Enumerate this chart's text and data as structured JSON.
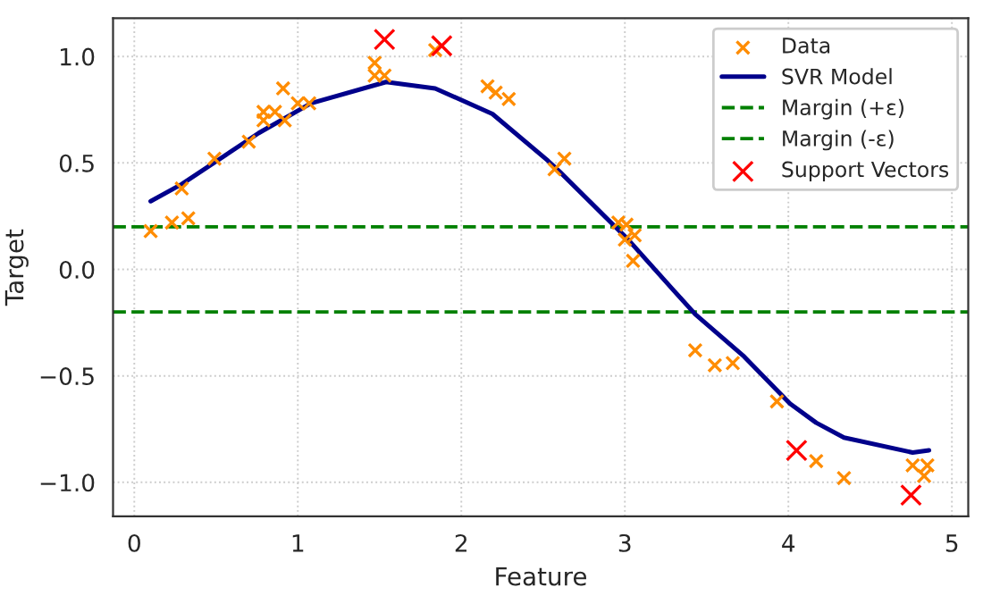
{
  "chart_data": {
    "type": "scatter",
    "xlabel": "Feature",
    "ylabel": "Target",
    "xlim": [
      -0.13,
      5.1
    ],
    "ylim": [
      -1.16,
      1.18
    ],
    "xticks": [
      0,
      1,
      2,
      3,
      4,
      5
    ],
    "yticks": [
      {
        "value": -1,
        "label": "−1.0"
      },
      -0.5,
      {
        "value": 0,
        "label": "0.0"
      },
      0.5,
      {
        "value": 1,
        "label": "1.0"
      }
    ],
    "grid": true,
    "legend": "top right",
    "series": [
      {
        "name": "Data",
        "marker": "cross",
        "color": "#ff8c00",
        "x": [
          0.1,
          0.29,
          0.23,
          0.33,
          0.49,
          0.7,
          0.79,
          0.79,
          0.86,
          0.91,
          0.92,
          1.0,
          1.07,
          1.47,
          1.47,
          1.53,
          1.84,
          2.16,
          2.21,
          2.29,
          2.57,
          2.63,
          2.96,
          3.01,
          3.0,
          3.06,
          3.05,
          3.43,
          3.55,
          3.66,
          3.93,
          4.17,
          4.34,
          4.76,
          4.85,
          4.83
        ],
        "values": [
          0.18,
          0.38,
          0.22,
          0.24,
          0.52,
          0.6,
          0.74,
          0.7,
          0.74,
          0.85,
          0.7,
          0.78,
          0.78,
          0.97,
          0.91,
          0.91,
          1.03,
          0.86,
          0.83,
          0.8,
          0.47,
          0.52,
          0.22,
          0.21,
          0.14,
          0.16,
          0.04,
          -0.38,
          -0.45,
          -0.44,
          -0.62,
          -0.9,
          -0.98,
          -0.92,
          -0.92,
          -0.97
        ]
      },
      {
        "name": "SVR Model",
        "type": "line",
        "line_style": "solid",
        "color": "#00008b",
        "x": [
          0.1,
          0.29,
          0.76,
          1.08,
          1.54,
          1.84,
          2.19,
          2.53,
          2.6,
          3.02,
          3.3,
          3.43,
          3.73,
          4.01,
          4.17,
          4.34,
          4.76,
          4.86
        ],
        "values": [
          0.32,
          0.4,
          0.64,
          0.78,
          0.88,
          0.85,
          0.73,
          0.51,
          0.46,
          0.14,
          -0.1,
          -0.21,
          -0.41,
          -0.63,
          -0.72,
          -0.79,
          -0.86,
          -0.85
        ]
      },
      {
        "name": "Support Vectors",
        "marker": "cross",
        "color": "#ff0000",
        "x": [
          1.53,
          1.88,
          4.05,
          4.75
        ],
        "values": [
          1.08,
          1.05,
          -0.85,
          -1.06
        ]
      }
    ],
    "ref_lines": [
      {
        "axis": "y",
        "value": 0.2,
        "label": "Margin (+ε)",
        "color": "#008000",
        "line_style": "dashed"
      },
      {
        "axis": "y",
        "value": -0.2,
        "label": "Margin (-ε)",
        "color": "#008000",
        "line_style": "dashed"
      }
    ]
  }
}
